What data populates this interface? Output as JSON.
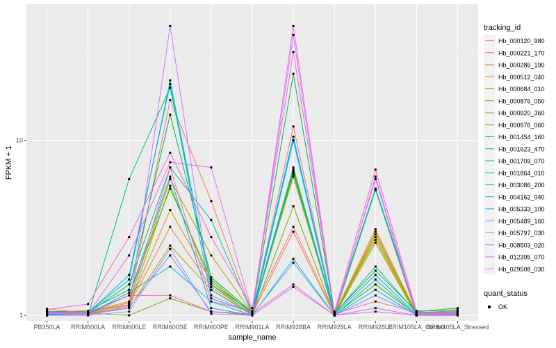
{
  "chart_data": {
    "type": "line",
    "xlabel": "sample_name",
    "ylabel": "FPKM + 1",
    "y_scale": "log10",
    "ylim": [
      0.93,
      60
    ],
    "y_ticks": [
      1,
      10
    ],
    "y_tick_labels": [
      "1",
      "10"
    ],
    "grid": true,
    "legend_position": "right",
    "categories": [
      "PB350LA",
      "RRIM600LA",
      "RRIM600LE",
      "RRIM600SE",
      "RRIM600PE",
      "RRIM901LA",
      "RRIM928BA",
      "RRIM928LA",
      "RRIM928LE",
      "RRIM105LA_Control",
      "RRIM105LA_Stressed"
    ],
    "legend_title": "tracking_id",
    "shape_legend_title": "quant_status",
    "shape_legend_label": "OK",
    "series": [
      {
        "name": "Hb_000120_980",
        "color": "#F8766D",
        "values": [
          1.0,
          1.04,
          1.18,
          17.0,
          4.5,
          1.02,
          12.0,
          1.0,
          5.2,
          1.0,
          1.0
        ]
      },
      {
        "name": "Hb_000221_170",
        "color": "#EC8239",
        "values": [
          1.02,
          1.04,
          1.14,
          3.2,
          1.45,
          1.02,
          3.0,
          1.0,
          3.0,
          1.0,
          1.02
        ]
      },
      {
        "name": "Hb_000286_190",
        "color": "#DB8E00",
        "values": [
          1.03,
          1.05,
          1.15,
          4.0,
          1.55,
          1.03,
          6.2,
          1.02,
          3.1,
          1.02,
          1.03
        ]
      },
      {
        "name": "Hb_000512_040",
        "color": "#C79800",
        "values": [
          1.01,
          1.03,
          1.1,
          2.5,
          1.4,
          1.0,
          6.4,
          1.0,
          2.8,
          1.0,
          1.01
        ]
      },
      {
        "name": "Hb_000684_010",
        "color": "#AFA100",
        "values": [
          1.04,
          1.05,
          1.2,
          6.0,
          2.2,
          1.03,
          6.6,
          1.02,
          2.7,
          1.01,
          1.03
        ]
      },
      {
        "name": "Hb_000876_050",
        "color": "#94A900",
        "values": [
          1.0,
          1.02,
          1.12,
          5.5,
          1.5,
          1.01,
          6.8,
          1.0,
          2.6,
          1.0,
          1.02
        ]
      },
      {
        "name": "Hb_000920_360",
        "color": "#72B000",
        "values": [
          1.01,
          1.03,
          1.0,
          1.25,
          1.05,
          1.0,
          4.2,
          1.0,
          2.9,
          1.02,
          1.05
        ]
      },
      {
        "name": "Hb_000976_060",
        "color": "#3DB700",
        "values": [
          1.02,
          1.04,
          1.3,
          5.3,
          1.6,
          1.02,
          6.7,
          1.01,
          1.5,
          1.01,
          1.08
        ]
      },
      {
        "name": "Hb_001454_160",
        "color": "#00BA42",
        "values": [
          1.05,
          1.06,
          1.4,
          14.0,
          1.65,
          1.04,
          24.0,
          1.03,
          1.8,
          1.05,
          1.1
        ]
      },
      {
        "name": "Hb_001623_470",
        "color": "#00BE70",
        "values": [
          1.06,
          1.0,
          6.0,
          20.0,
          1.5,
          1.05,
          10.0,
          1.04,
          5.3,
          1.06,
          1.06
        ]
      },
      {
        "name": "Hb_001709_070",
        "color": "#00C094",
        "values": [
          1.03,
          1.03,
          1.5,
          7.0,
          3.5,
          1.02,
          7.0,
          1.02,
          1.9,
          1.03,
          1.04
        ]
      },
      {
        "name": "Hb_001864_010",
        "color": "#00C0B4",
        "values": [
          1.02,
          1.04,
          1.6,
          22.0,
          1.4,
          1.01,
          6.5,
          1.01,
          5.2,
          1.02,
          1.03
        ]
      },
      {
        "name": "Hb_003086_200",
        "color": "#00BCD1",
        "values": [
          1.0,
          1.02,
          1.35,
          1.9,
          1.2,
          1.0,
          2.1,
          1.0,
          1.6,
          1.0,
          1.01
        ]
      },
      {
        "name": "Hb_004162_040",
        "color": "#00B6EB",
        "values": [
          1.04,
          1.03,
          1.7,
          21.0,
          1.25,
          1.03,
          10.5,
          1.02,
          1.7,
          1.01,
          1.02
        ]
      },
      {
        "name": "Hb_005333_100",
        "color": "#00A9FF",
        "values": [
          1.01,
          1.02,
          1.3,
          6.2,
          1.1,
          1.0,
          10.0,
          1.0,
          1.4,
          1.0,
          1.0
        ]
      },
      {
        "name": "Hb_005489_160",
        "color": "#619CFF",
        "values": [
          1.02,
          1.01,
          1.12,
          2.2,
          1.05,
          1.01,
          2.0,
          1.0,
          1.3,
          1.01,
          1.02
        ]
      },
      {
        "name": "Hb_005797_030",
        "color": "#A58AFF",
        "values": [
          1.0,
          1.0,
          1.05,
          2.4,
          1.02,
          1.0,
          1.45,
          1.0,
          1.1,
          1.0,
          1.0
        ]
      },
      {
        "name": "Hb_008503_020",
        "color": "#CF78FF",
        "values": [
          1.03,
          1.01,
          1.1,
          45.0,
          1.3,
          1.02,
          40.0,
          1.01,
          6.2,
          1.02,
          1.03
        ]
      },
      {
        "name": "Hb_012395_070",
        "color": "#EB6AF2",
        "values": [
          1.05,
          1.02,
          2.2,
          7.5,
          7.0,
          1.04,
          45.0,
          1.03,
          6.0,
          1.01,
          1.04
        ]
      },
      {
        "name": "Hb_029508_030",
        "color": "#FA62DB",
        "values": [
          1.08,
          1.16,
          2.8,
          8.5,
          2.8,
          1.1,
          32.0,
          1.05,
          6.8,
          1.05,
          1.02
        ]
      },
      {
        "name": "",
        "color": "#FF62BC",
        "values": [
          1.02,
          1.04,
          1.3,
          1.3,
          1.05,
          1.02,
          1.5,
          1.0,
          1.05,
          1.0,
          1.02
        ]
      },
      {
        "name": "",
        "color": "#FF6C90",
        "values": [
          1.09,
          1.03,
          1.15,
          7.0,
          1.2,
          1.06,
          3.2,
          1.02,
          1.2,
          1.04,
          1.05
        ]
      }
    ]
  }
}
